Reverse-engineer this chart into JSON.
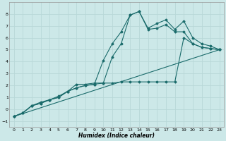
{
  "xlabel": "Humidex (Indice chaleur)",
  "bg_color": "#cce8e8",
  "grid_color": "#b8d8d8",
  "line_color": "#1a6b6b",
  "xlim": [
    -0.5,
    23.5
  ],
  "ylim": [
    -1.5,
    9.0
  ],
  "xticks": [
    0,
    1,
    2,
    3,
    4,
    5,
    6,
    7,
    8,
    9,
    10,
    11,
    12,
    13,
    14,
    15,
    16,
    17,
    18,
    19,
    20,
    21,
    22,
    23
  ],
  "yticks": [
    -1,
    0,
    1,
    2,
    3,
    4,
    5,
    6,
    7,
    8
  ],
  "line1_x": [
    0,
    1,
    2,
    3,
    4,
    5,
    6,
    7,
    8,
    9,
    10,
    11,
    12,
    13,
    14,
    15,
    16,
    17,
    18,
    19,
    20,
    21,
    22,
    23
  ],
  "line1_y": [
    -0.6,
    -0.3,
    0.3,
    0.6,
    0.8,
    1.1,
    1.5,
    2.1,
    2.1,
    2.2,
    2.2,
    4.4,
    5.5,
    7.9,
    8.2,
    6.8,
    7.2,
    7.5,
    6.7,
    7.4,
    6.0,
    5.5,
    5.3,
    5.0
  ],
  "line2_x": [
    0,
    1,
    2,
    3,
    4,
    5,
    6,
    7,
    8,
    9,
    10,
    11,
    12,
    13,
    14,
    15,
    16,
    17,
    18,
    19,
    20,
    21,
    22,
    23
  ],
  "line2_y": [
    -0.6,
    -0.3,
    0.3,
    0.5,
    0.8,
    1.0,
    1.5,
    1.8,
    2.0,
    2.1,
    4.1,
    5.5,
    6.5,
    7.9,
    8.2,
    6.7,
    6.8,
    7.1,
    6.5,
    6.5,
    5.5,
    5.2,
    5.1,
    5.0
  ],
  "line3_x": [
    0,
    23
  ],
  "line3_y": [
    -0.6,
    5.0
  ],
  "line4_x": [
    0,
    1,
    2,
    3,
    4,
    5,
    6,
    7,
    8,
    9,
    10,
    11,
    12,
    13,
    14,
    15,
    16,
    17,
    18,
    19,
    20,
    21,
    22,
    23
  ],
  "line4_y": [
    -0.6,
    -0.3,
    0.3,
    0.5,
    0.8,
    1.0,
    1.5,
    1.8,
    2.0,
    2.1,
    2.2,
    2.2,
    2.3,
    2.3,
    2.3,
    2.3,
    2.3,
    2.3,
    2.3,
    6.0,
    5.5,
    5.2,
    5.1,
    5.0
  ]
}
